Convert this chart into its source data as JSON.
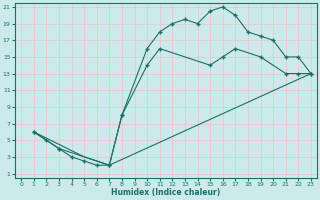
{
  "xlabel": "Humidex (Indice chaleur)",
  "bg_color": "#cceaeb",
  "grid_color": "#e8c8c8",
  "line_color": "#1a7068",
  "xlim": [
    -0.5,
    23.5
  ],
  "ylim": [
    0.5,
    21.5
  ],
  "xticks": [
    0,
    1,
    2,
    3,
    4,
    5,
    6,
    7,
    8,
    9,
    10,
    11,
    12,
    13,
    14,
    15,
    16,
    17,
    18,
    19,
    20,
    21,
    22,
    23
  ],
  "yticks": [
    1,
    3,
    5,
    7,
    9,
    11,
    13,
    15,
    17,
    19,
    21
  ],
  "line1_x": [
    1,
    2,
    3,
    4,
    5,
    6,
    7,
    8,
    10,
    11,
    12,
    13,
    14,
    15,
    16,
    17,
    18,
    19,
    20,
    21,
    22,
    23
  ],
  "line1_y": [
    6,
    5,
    4,
    3,
    2.5,
    2,
    2,
    8,
    16,
    18,
    19,
    19.5,
    19,
    20.5,
    21,
    20,
    18,
    17.5,
    17,
    15,
    15,
    13
  ],
  "line2_x": [
    1,
    3,
    7,
    8,
    10,
    11,
    15,
    16,
    17,
    19,
    21,
    22,
    23
  ],
  "line2_y": [
    6,
    4,
    2,
    8,
    14,
    16,
    14,
    15,
    16,
    15,
    13,
    13,
    13
  ],
  "line3_x": [
    1,
    5,
    7,
    23
  ],
  "line3_y": [
    6,
    3,
    2,
    13
  ]
}
